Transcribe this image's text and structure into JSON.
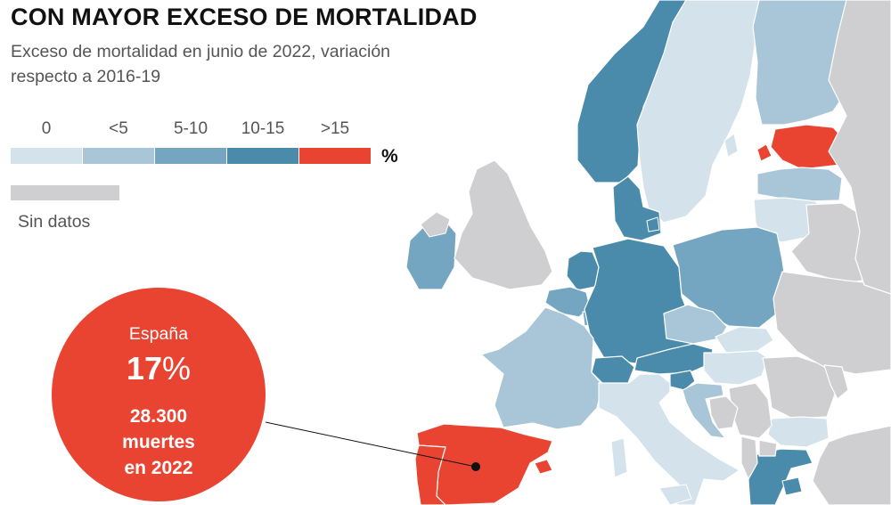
{
  "title": "CON MAYOR EXCESO DE MORTALIDAD",
  "subtitle": "Exceso de mortalidad en junio de 2022, variación respecto a 2016-19",
  "legend": {
    "classes": [
      {
        "label": "0",
        "color": "#d3e2eb"
      },
      {
        "label": "<5",
        "color": "#a8c6d7"
      },
      {
        "label": "5-10",
        "color": "#75a6c1"
      },
      {
        "label": "10-15",
        "color": "#4a8aaa"
      },
      {
        "label": ">15",
        "color": "#e84431"
      }
    ],
    "unit": "%",
    "no_data": {
      "label": "Sin datos",
      "color": "#cfcfd1"
    }
  },
  "highlight": {
    "country": "España",
    "value_number": "17",
    "value_unit": "%",
    "description": "28.300\nmuertes\nen 2022",
    "color": "#e84431"
  },
  "map": {
    "sea_color": "#ffffff",
    "border_color": "#ffffff",
    "countries": [
      {
        "name": "Noruega",
        "class": "10-15"
      },
      {
        "name": "Suecia",
        "class": "0"
      },
      {
        "name": "Finlandia",
        "class": "<5"
      },
      {
        "name": "Estonia",
        "class": ">15"
      },
      {
        "name": "Letonia",
        "class": "<5"
      },
      {
        "name": "Lituania",
        "class": "0"
      },
      {
        "name": "Dinamarca",
        "class": "10-15"
      },
      {
        "name": "Irlanda",
        "class": "5-10"
      },
      {
        "name": "Reino Unido",
        "class": "Sin datos"
      },
      {
        "name": "Países Bajos",
        "class": "10-15"
      },
      {
        "name": "Bélgica",
        "class": "5-10"
      },
      {
        "name": "Luxemburgo",
        "class": "5-10"
      },
      {
        "name": "Alemania",
        "class": "10-15"
      },
      {
        "name": "Polonia",
        "class": "5-10"
      },
      {
        "name": "Chequia",
        "class": "<5"
      },
      {
        "name": "Eslovaquia",
        "class": "0"
      },
      {
        "name": "Austria",
        "class": "10-15"
      },
      {
        "name": "Suiza",
        "class": "10-15"
      },
      {
        "name": "Eslovenia",
        "class": "10-15"
      },
      {
        "name": "Hungría",
        "class": "0"
      },
      {
        "name": "Croacia",
        "class": "<5"
      },
      {
        "name": "Francia",
        "class": "<5"
      },
      {
        "name": "Italia",
        "class": "0"
      },
      {
        "name": "España",
        "class": ">15"
      },
      {
        "name": "Portugal",
        "class": ">15"
      },
      {
        "name": "Rumanía",
        "class": "Sin datos"
      },
      {
        "name": "Bulgaria",
        "class": "0"
      },
      {
        "name": "Grecia",
        "class": "10-15"
      },
      {
        "name": "Serbia",
        "class": "Sin datos"
      },
      {
        "name": "Bosnia",
        "class": "Sin datos"
      },
      {
        "name": "Bielorrusia",
        "class": "Sin datos"
      },
      {
        "name": "Ucrania",
        "class": "Sin datos"
      },
      {
        "name": "Rusia",
        "class": "Sin datos"
      },
      {
        "name": "Turquía",
        "class": "Sin datos"
      },
      {
        "name": "Moldavia",
        "class": "Sin datos"
      },
      {
        "name": "Albania",
        "class": "Sin datos"
      },
      {
        "name": "Macedonia",
        "class": "Sin datos"
      }
    ]
  }
}
